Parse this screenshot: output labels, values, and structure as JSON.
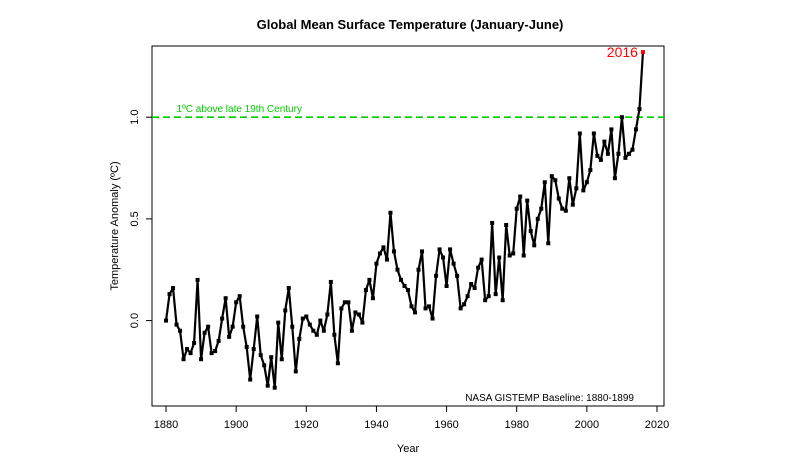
{
  "chart_data": {
    "type": "line",
    "title": "Global Mean Surface Temperature (January-June)",
    "xlabel": "Year",
    "ylabel": "Temperature Anomaly (ºC)",
    "xlim": [
      1876,
      2022
    ],
    "ylim": [
      -0.42,
      1.35
    ],
    "xticks": [
      "1880",
      "1900",
      "1920",
      "1940",
      "1960",
      "1980",
      "2000",
      "2020"
    ],
    "yticks": [
      "0.0",
      "0.5",
      "1.0"
    ],
    "grid": false,
    "reference_line": {
      "y": 1.0,
      "label": "1ºC above late 19th Century",
      "color": "#00cc00"
    },
    "highlight": {
      "label": "2016",
      "year": 2016,
      "value": 1.32,
      "color": "#ff0000"
    },
    "note": "NASA GISTEMP Baseline: 1880-1899",
    "series": [
      {
        "color": "#000000",
        "x": [
          1880,
          1881,
          1882,
          1883,
          1884,
          1885,
          1886,
          1887,
          1888,
          1889,
          1890,
          1891,
          1892,
          1893,
          1894,
          1895,
          1896,
          1897,
          1898,
          1899,
          1900,
          1901,
          1902,
          1903,
          1904,
          1905,
          1906,
          1907,
          1908,
          1909,
          1910,
          1911,
          1912,
          1913,
          1914,
          1915,
          1916,
          1917,
          1918,
          1919,
          1920,
          1921,
          1922,
          1923,
          1924,
          1925,
          1926,
          1927,
          1928,
          1929,
          1930,
          1931,
          1932,
          1933,
          1934,
          1935,
          1936,
          1937,
          1938,
          1939,
          1940,
          1941,
          1942,
          1943,
          1944,
          1945,
          1946,
          1947,
          1948,
          1949,
          1950,
          1951,
          1952,
          1953,
          1954,
          1955,
          1956,
          1957,
          1958,
          1959,
          1960,
          1961,
          1962,
          1963,
          1964,
          1965,
          1966,
          1967,
          1968,
          1969,
          1970,
          1971,
          1972,
          1973,
          1974,
          1975,
          1976,
          1977,
          1978,
          1979,
          1980,
          1981,
          1982,
          1983,
          1984,
          1985,
          1986,
          1987,
          1988,
          1989,
          1990,
          1991,
          1992,
          1993,
          1994,
          1995,
          1996,
          1997,
          1998,
          1999,
          2000,
          2001,
          2002,
          2003,
          2004,
          2005,
          2006,
          2007,
          2008,
          2009,
          2010,
          2011,
          2012,
          2013,
          2014,
          2015,
          2016
        ],
        "values": [
          0.0,
          0.13,
          0.16,
          -0.02,
          -0.05,
          -0.19,
          -0.14,
          -0.16,
          -0.11,
          0.2,
          -0.19,
          -0.06,
          -0.03,
          -0.16,
          -0.15,
          -0.1,
          0.01,
          0.11,
          -0.08,
          -0.03,
          0.09,
          0.12,
          -0.03,
          -0.13,
          -0.29,
          -0.14,
          0.02,
          -0.17,
          -0.22,
          -0.32,
          -0.18,
          -0.33,
          -0.01,
          -0.19,
          0.05,
          0.16,
          -0.03,
          -0.25,
          -0.09,
          0.01,
          0.02,
          -0.02,
          -0.05,
          -0.07,
          0.0,
          -0.05,
          0.03,
          0.19,
          -0.07,
          -0.21,
          0.06,
          0.09,
          0.09,
          -0.05,
          0.04,
          0.03,
          -0.01,
          0.15,
          0.2,
          0.11,
          0.28,
          0.33,
          0.36,
          0.3,
          0.53,
          0.34,
          0.25,
          0.2,
          0.17,
          0.15,
          0.07,
          0.04,
          0.25,
          0.34,
          0.06,
          0.07,
          0.01,
          0.22,
          0.35,
          0.31,
          0.17,
          0.35,
          0.28,
          0.22,
          0.06,
          0.08,
          0.12,
          0.18,
          0.16,
          0.26,
          0.3,
          0.1,
          0.12,
          0.48,
          0.13,
          0.31,
          0.1,
          0.47,
          0.32,
          0.33,
          0.55,
          0.61,
          0.32,
          0.59,
          0.44,
          0.37,
          0.5,
          0.55,
          0.68,
          0.38,
          0.71,
          0.69,
          0.6,
          0.55,
          0.54,
          0.7,
          0.57,
          0.65,
          0.92,
          0.64,
          0.68,
          0.74,
          0.92,
          0.81,
          0.79,
          0.88,
          0.82,
          0.94,
          0.7,
          0.82,
          1.0,
          0.8,
          0.82,
          0.84,
          0.94,
          1.04,
          1.32
        ]
      }
    ]
  }
}
